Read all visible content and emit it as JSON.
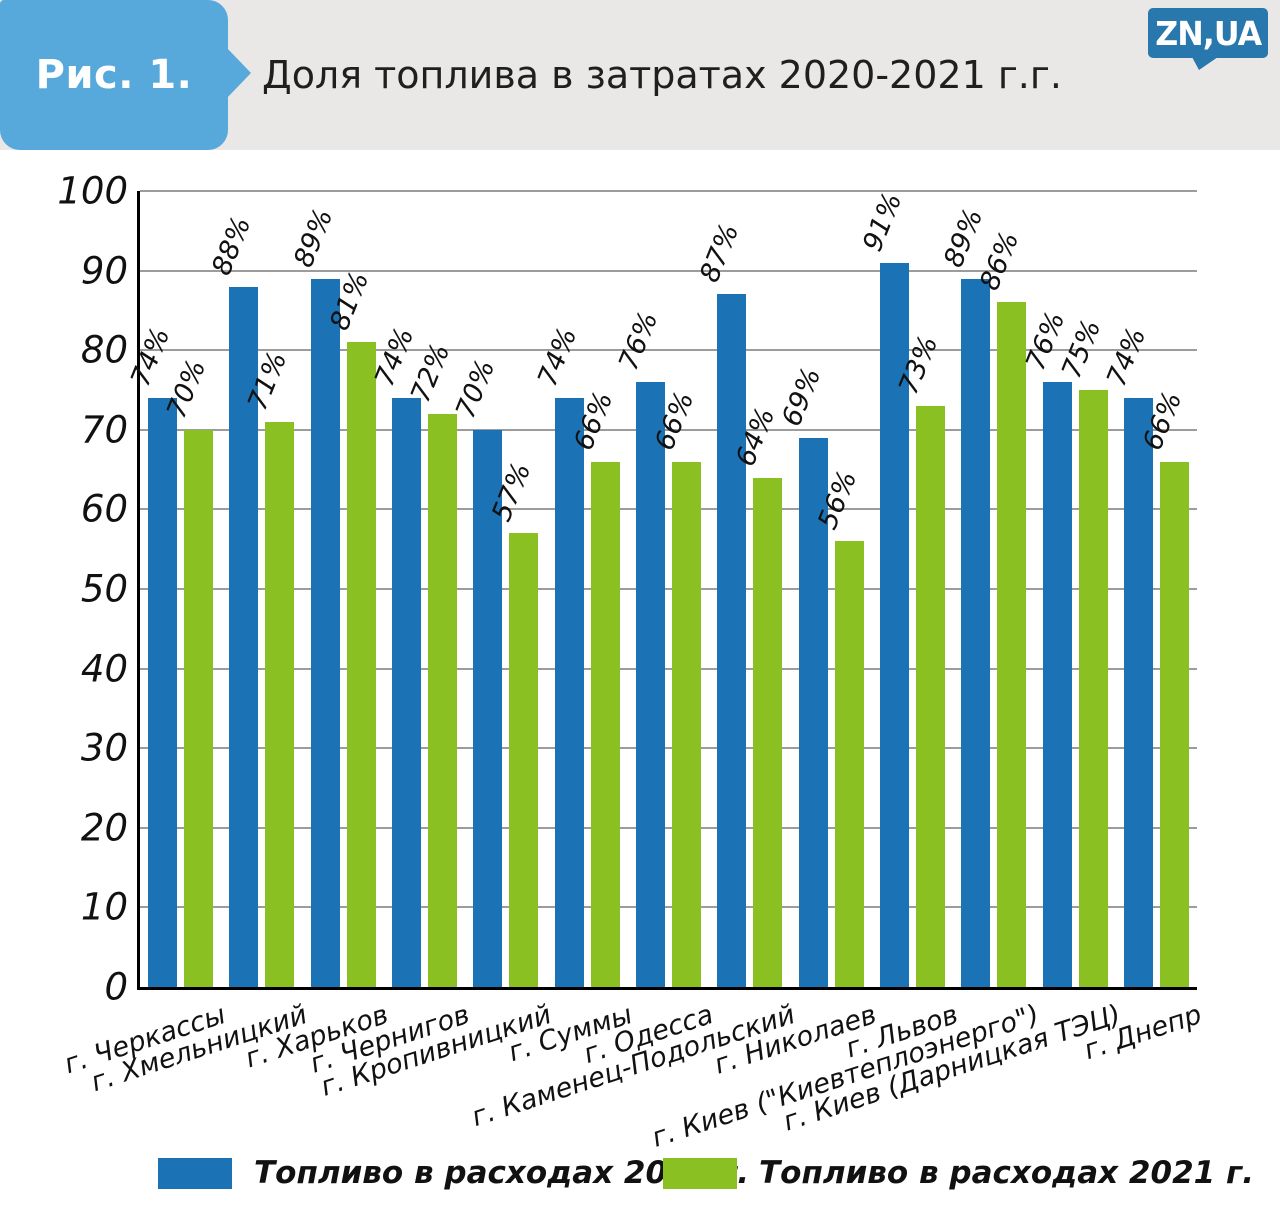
{
  "header": {
    "figure_label": "Рис. 1.",
    "title": "Доля топлива в затратах 2020-2021 г.г.",
    "logo_text": "ZN,UA"
  },
  "colors": {
    "bar_2020": "#1b72b5",
    "bar_2021": "#8ac022",
    "badge_blue": "#57a8db",
    "logo_blue": "#2878ad",
    "header_gray": "#e9e8e6",
    "gridline_gray": "#9c9c9c"
  },
  "chart_data": {
    "type": "bar",
    "title": "Доля топлива в затратах 2020-2021 г.г.",
    "categories": [
      "г. Черкассы",
      "г. Хмельницкий",
      "г. Харьков",
      "г. Чернигов",
      "г. Кропивницкий",
      "г. Суммы",
      "г. Одесса",
      "г. Каменец-Подольский",
      "г. Николаев",
      "г. Львов",
      "г. Киев (\"Киевтеплоэнерго\")",
      "г. Киев (Дарницкая ТЭЦ)",
      "г. Днепр"
    ],
    "series": [
      {
        "name": "Топливо в расходах 2020 г.",
        "color": "#1b72b5",
        "values": [
          74,
          88,
          89,
          74,
          70,
          74,
          76,
          87,
          69,
          91,
          89,
          76,
          74
        ]
      },
      {
        "name": "Топливо в расходах 2021 г.",
        "color": "#8ac022",
        "values": [
          70,
          71,
          81,
          72,
          57,
          66,
          66,
          64,
          56,
          73,
          86,
          75,
          66
        ]
      }
    ],
    "value_label_format": "{v}%",
    "xlabel": "",
    "ylabel": "",
    "ylim": [
      0,
      100
    ],
    "yticks": [
      0,
      10,
      20,
      30,
      40,
      50,
      60,
      70,
      80,
      90,
      100
    ],
    "grid": true,
    "legend_position": "bottom"
  }
}
